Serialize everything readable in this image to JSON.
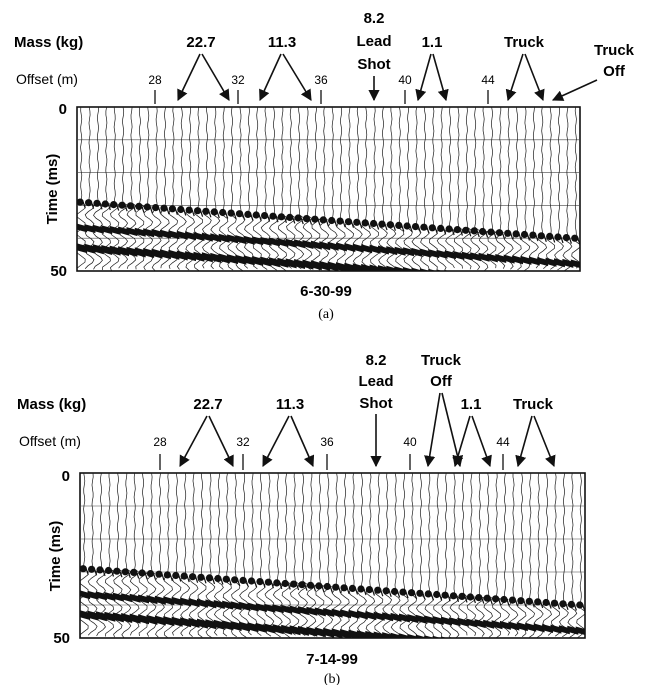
{
  "colors": {
    "ink": "#111111",
    "trace": "#1a1a1a",
    "background": "#ffffff"
  },
  "common_labels": {
    "mass": "Mass (kg)",
    "offset": "Offset (m)",
    "time": "Time (ms)",
    "time_top": "0",
    "time_bottom": "50"
  },
  "panels": [
    {
      "date": "6-30-99",
      "caption": "(a)",
      "offset_ticks": [
        "28",
        "32",
        "36",
        "40",
        "44"
      ],
      "mass_labels": [
        "22.7",
        "11.3",
        "8.2",
        "Lead",
        "Shot",
        "1.1",
        "Truck",
        "Truck",
        "Off"
      ]
    },
    {
      "date": "7-14-99",
      "caption": "(b)",
      "offset_ticks": [
        "28",
        "32",
        "36",
        "40",
        "44"
      ],
      "mass_labels": [
        "22.7",
        "11.3",
        "8.2",
        "Lead",
        "Shot",
        "Truck",
        "Off",
        "1.1",
        "Truck"
      ]
    }
  ]
}
